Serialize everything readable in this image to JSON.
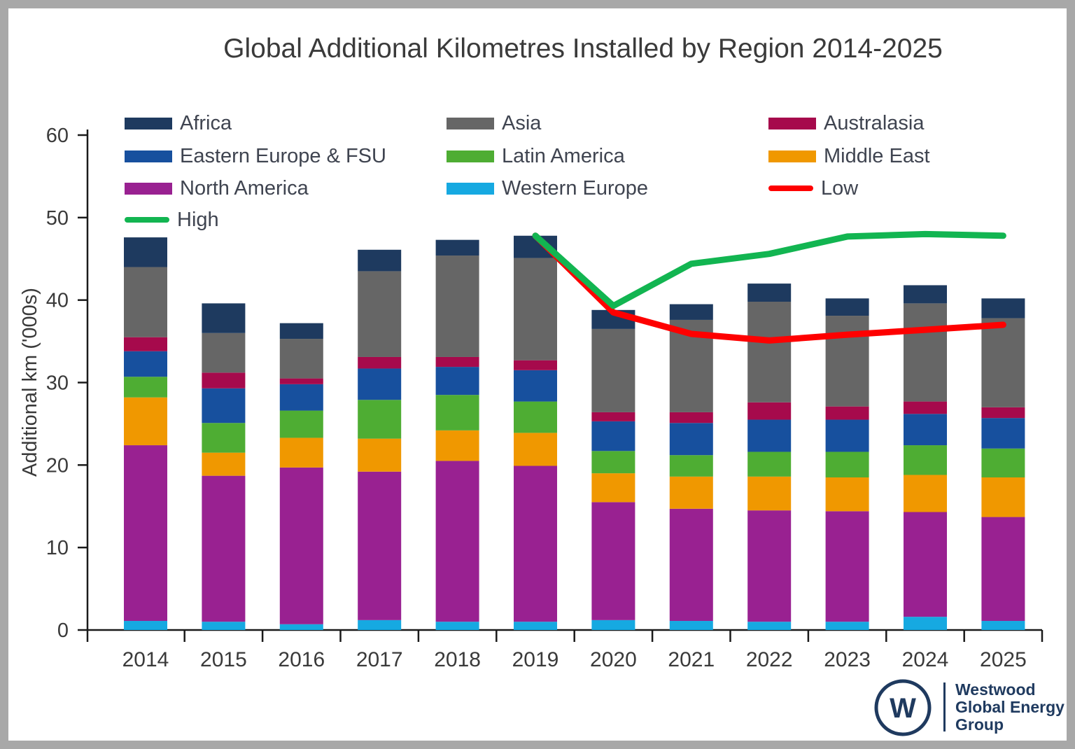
{
  "title": "Global Additional Kilometres Installed by Region 2014-2025",
  "y_axis": {
    "label": "Additional km ('000s)",
    "ticks": [
      0,
      10,
      20,
      30,
      40,
      50,
      60
    ],
    "max": 60
  },
  "chart_data": {
    "type": "bar",
    "stacked": true,
    "title": "Global Additional Kilometres Installed by Region 2014-2025",
    "xlabel": "",
    "ylabel": "Additional km ('000s)",
    "ylim": [
      0,
      60
    ],
    "yticks": [
      0,
      10,
      20,
      30,
      40,
      50,
      60
    ],
    "grid": false,
    "legend_position": "top",
    "categories": [
      "2014",
      "2015",
      "2016",
      "2017",
      "2018",
      "2019",
      "2020",
      "2021",
      "2022",
      "2023",
      "2024",
      "2025"
    ],
    "series": [
      {
        "name": "Western Europe",
        "color": "#16a9e1",
        "values": [
          1.1,
          1.0,
          0.7,
          1.2,
          1.0,
          1.0,
          1.2,
          1.1,
          1.0,
          1.0,
          1.6,
          1.1
        ]
      },
      {
        "name": "North America",
        "color": "#992191",
        "values": [
          21.3,
          17.7,
          19.0,
          18.0,
          19.5,
          18.9,
          14.3,
          13.6,
          13.5,
          13.4,
          12.7,
          12.6
        ]
      },
      {
        "name": "Middle East",
        "color": "#f09800",
        "values": [
          5.8,
          2.8,
          3.6,
          4.0,
          3.7,
          4.0,
          3.5,
          3.9,
          4.1,
          4.1,
          4.5,
          4.8
        ]
      },
      {
        "name": "Latin America",
        "color": "#4ead33",
        "values": [
          2.5,
          3.6,
          3.3,
          4.7,
          4.3,
          3.8,
          2.7,
          2.6,
          3.0,
          3.1,
          3.6,
          3.5
        ]
      },
      {
        "name": "Eastern Europe & FSU",
        "color": "#17509e",
        "values": [
          3.1,
          4.2,
          3.2,
          3.8,
          3.4,
          3.8,
          3.6,
          3.9,
          3.9,
          3.9,
          3.8,
          3.7
        ]
      },
      {
        "name": "Australasia",
        "color": "#a60a4c",
        "values": [
          1.7,
          1.9,
          0.7,
          1.4,
          1.2,
          1.2,
          1.1,
          1.3,
          2.1,
          1.6,
          1.5,
          1.3
        ]
      },
      {
        "name": "Asia",
        "color": "#666666",
        "values": [
          8.5,
          4.8,
          4.8,
          10.4,
          12.3,
          12.4,
          10.1,
          11.2,
          12.2,
          11.0,
          11.9,
          10.8
        ]
      },
      {
        "name": "Africa",
        "color": "#1e3a5f",
        "values": [
          3.6,
          3.6,
          1.9,
          2.6,
          1.9,
          2.7,
          2.3,
          1.9,
          2.2,
          2.1,
          2.2,
          2.4
        ]
      }
    ],
    "lines": [
      {
        "name": "Low",
        "color": "#fe0000",
        "start_index": 5,
        "values": [
          47.8,
          38.5,
          35.9,
          35.1,
          35.8,
          36.4,
          37.0
        ]
      },
      {
        "name": "High",
        "color": "#12b551",
        "start_index": 5,
        "values": [
          47.8,
          39.3,
          44.4,
          45.6,
          47.7,
          48.0,
          47.8
        ]
      }
    ]
  },
  "legend": {
    "items": [
      {
        "label": "Africa",
        "color": "#1e3a5f",
        "marker": "box",
        "col": 0,
        "row": 0
      },
      {
        "label": "Asia",
        "color": "#666666",
        "marker": "box",
        "col": 1,
        "row": 0
      },
      {
        "label": "Australasia",
        "color": "#a60a4c",
        "marker": "box",
        "col": 2,
        "row": 0
      },
      {
        "label": "Eastern Europe & FSU",
        "color": "#17509e",
        "marker": "box",
        "col": 0,
        "row": 1
      },
      {
        "label": "Latin America",
        "color": "#4ead33",
        "marker": "box",
        "col": 1,
        "row": 1
      },
      {
        "label": "Middle East",
        "color": "#f09800",
        "marker": "box",
        "col": 2,
        "row": 1
      },
      {
        "label": "North America",
        "color": "#992191",
        "marker": "box",
        "col": 0,
        "row": 2
      },
      {
        "label": "Western Europe",
        "color": "#16a9e1",
        "marker": "box",
        "col": 1,
        "row": 2
      },
      {
        "label": "Low",
        "color": "#fe0000",
        "marker": "line",
        "col": 2,
        "row": 2
      },
      {
        "label": "High",
        "color": "#12b551",
        "marker": "line",
        "col": 0,
        "row": 3
      }
    ]
  },
  "logo": {
    "monogram": "W",
    "name_lines": [
      "Westwood",
      "Global Energy",
      "Group"
    ],
    "color": "#1f3a5f"
  }
}
